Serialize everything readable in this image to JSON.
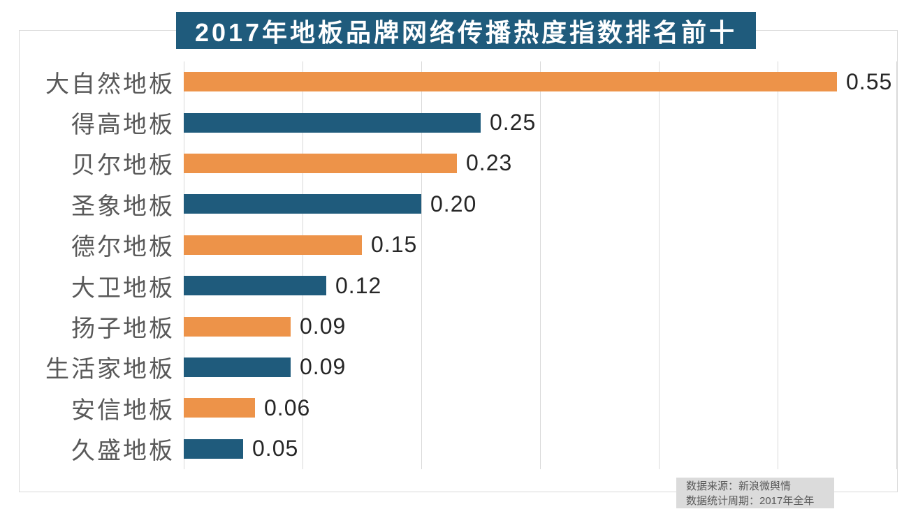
{
  "colors": {
    "frame_border": "#D9D9D9",
    "grid": "#D9D9D9",
    "title_bg": "#1F5B7C",
    "title_text": "#FFFFFF",
    "category_label": "#595959",
    "value_label": "#262626",
    "note_bg": "#DBDBDB",
    "note_text": "#595959",
    "background": "#FFFFFF",
    "bar_orange": "#ED9349",
    "bar_blue": "#1F5B7C"
  },
  "source_note": {
    "line1": "数据来源：新浪微舆情",
    "line2": "数据统计周期：2017年全年"
  },
  "chart_data": {
    "type": "bar",
    "orientation": "horizontal",
    "title": "2017年地板品牌网络传播热度指数排名前十",
    "categories": [
      "大自然地板",
      "得高地板",
      "贝尔地板",
      "圣象地板",
      "德尔地板",
      "大卫地板",
      "扬子地板",
      "生活家地板",
      "安信地板",
      "久盛地板"
    ],
    "values": [
      0.55,
      0.25,
      0.23,
      0.2,
      0.15,
      0.12,
      0.09,
      0.09,
      0.06,
      0.05
    ],
    "value_labels": [
      "0.55",
      "0.25",
      "0.23",
      "0.20",
      "0.15",
      "0.12",
      "0.09",
      "0.09",
      "0.06",
      "0.05"
    ],
    "bar_colors": [
      "#ED9349",
      "#1F5B7C",
      "#ED9349",
      "#1F5B7C",
      "#ED9349",
      "#1F5B7C",
      "#ED9349",
      "#1F5B7C",
      "#ED9349",
      "#1F5B7C"
    ],
    "xlabel": "",
    "ylabel": "",
    "xlim": [
      0,
      0.6
    ],
    "gridline_step": 0.1,
    "grid": true,
    "legend": false,
    "annotations": [
      "数据来源：新浪微舆情",
      "数据统计周期：2017年全年"
    ]
  }
}
